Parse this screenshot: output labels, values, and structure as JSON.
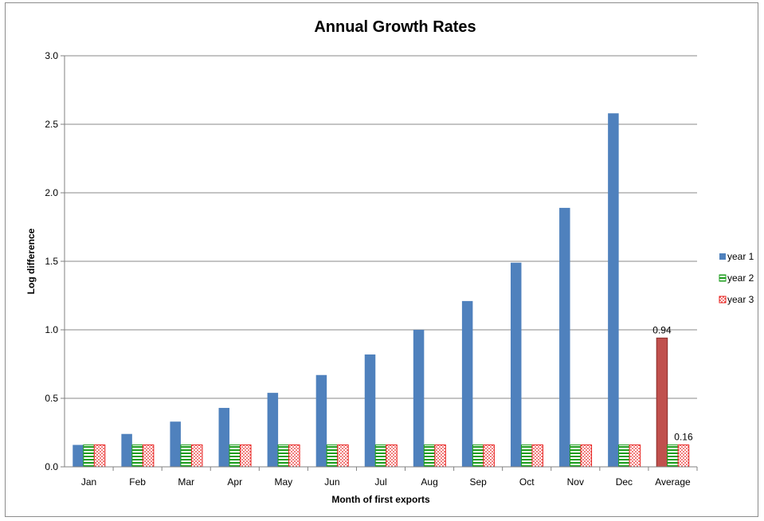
{
  "chart_data": {
    "type": "bar",
    "title": "Annual Growth Rates",
    "xlabel": "Month of first exports",
    "ylabel": "Log difference",
    "ylim": [
      0,
      3.0
    ],
    "yticks": [
      "0.0",
      "0.5",
      "1.0",
      "1.5",
      "2.0",
      "2.5",
      "3.0"
    ],
    "grid": true,
    "legend_position": "right",
    "categories": [
      "Jan",
      "Feb",
      "Mar",
      "Apr",
      "May",
      "Jun",
      "Jul",
      "Aug",
      "Sep",
      "Oct",
      "Nov",
      "Dec",
      "Average"
    ],
    "series": [
      {
        "name": "year 1",
        "color": "#4f81bd",
        "pattern": "solid",
        "values": [
          0.16,
          0.24,
          0.33,
          0.43,
          0.54,
          0.67,
          0.82,
          1.0,
          1.21,
          1.49,
          1.89,
          2.58,
          0.94
        ]
      },
      {
        "name": "year 2",
        "color": "#1e9e1e",
        "pattern": "horizontal-stripes",
        "values": [
          0.16,
          0.16,
          0.16,
          0.16,
          0.16,
          0.16,
          0.16,
          0.16,
          0.16,
          0.16,
          0.16,
          0.16,
          0.16
        ]
      },
      {
        "name": "year 3",
        "color": "#e8201e",
        "pattern": "dotted",
        "values": [
          0.16,
          0.16,
          0.16,
          0.16,
          0.16,
          0.16,
          0.16,
          0.16,
          0.16,
          0.16,
          0.16,
          0.16,
          0.16
        ]
      }
    ],
    "highlight": {
      "category": "Average",
      "series": "year 1",
      "color": "#c0504d"
    },
    "data_labels": [
      {
        "category": "Average",
        "series": "year 1",
        "text": "0.94"
      },
      {
        "category": "Average",
        "series": "year 3",
        "text": "0.16"
      }
    ]
  }
}
